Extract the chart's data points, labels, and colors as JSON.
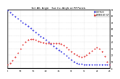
{
  "title": "Sol. Alt. Angle    Sun Inc. Angle on PV Panels",
  "legend_labels": [
    "HOT SUN",
    "APPARENT TOP"
  ],
  "alt_color": "#0000dd",
  "inc_color": "#dd0000",
  "x_values": [
    5,
    6,
    7,
    8,
    9,
    10,
    11,
    12,
    13,
    14,
    15,
    16,
    17,
    18,
    19,
    20,
    21,
    22,
    23,
    24,
    25,
    26,
    27,
    28,
    29,
    30,
    31,
    32,
    33,
    34,
    35,
    36,
    37,
    38,
    39,
    40,
    41,
    42,
    43,
    44,
    45
  ],
  "altitude_y": [
    88,
    85,
    82,
    79,
    76,
    73,
    70,
    67,
    64,
    61,
    58,
    55,
    52,
    49,
    46,
    43,
    40,
    37,
    34,
    31,
    28,
    25,
    22,
    19,
    16,
    13,
    10,
    8,
    7,
    6,
    5,
    5,
    5,
    5,
    5,
    5,
    5,
    5,
    5,
    5,
    5
  ],
  "incidence_y": [
    5,
    8,
    12,
    17,
    23,
    30,
    36,
    40,
    43,
    44,
    44,
    43,
    41,
    40,
    39,
    38,
    38,
    38,
    38,
    38,
    38,
    37,
    35,
    32,
    29,
    25,
    22,
    20,
    18,
    17,
    18,
    20,
    23,
    27,
    30,
    32,
    30,
    25,
    18,
    10,
    5
  ],
  "ylim": [
    0,
    90
  ],
  "xlim": [
    5,
    45
  ],
  "ytick_vals": [
    0,
    10,
    20,
    30,
    40,
    50,
    60,
    70,
    80,
    90
  ],
  "ytick_labels": [
    "0",
    "10",
    "20",
    "30",
    "40",
    "50",
    "60",
    "70",
    "80",
    "90"
  ],
  "xtick_step": 5,
  "bg_color": "#ffffff",
  "grid_color": "#bbbbbb"
}
